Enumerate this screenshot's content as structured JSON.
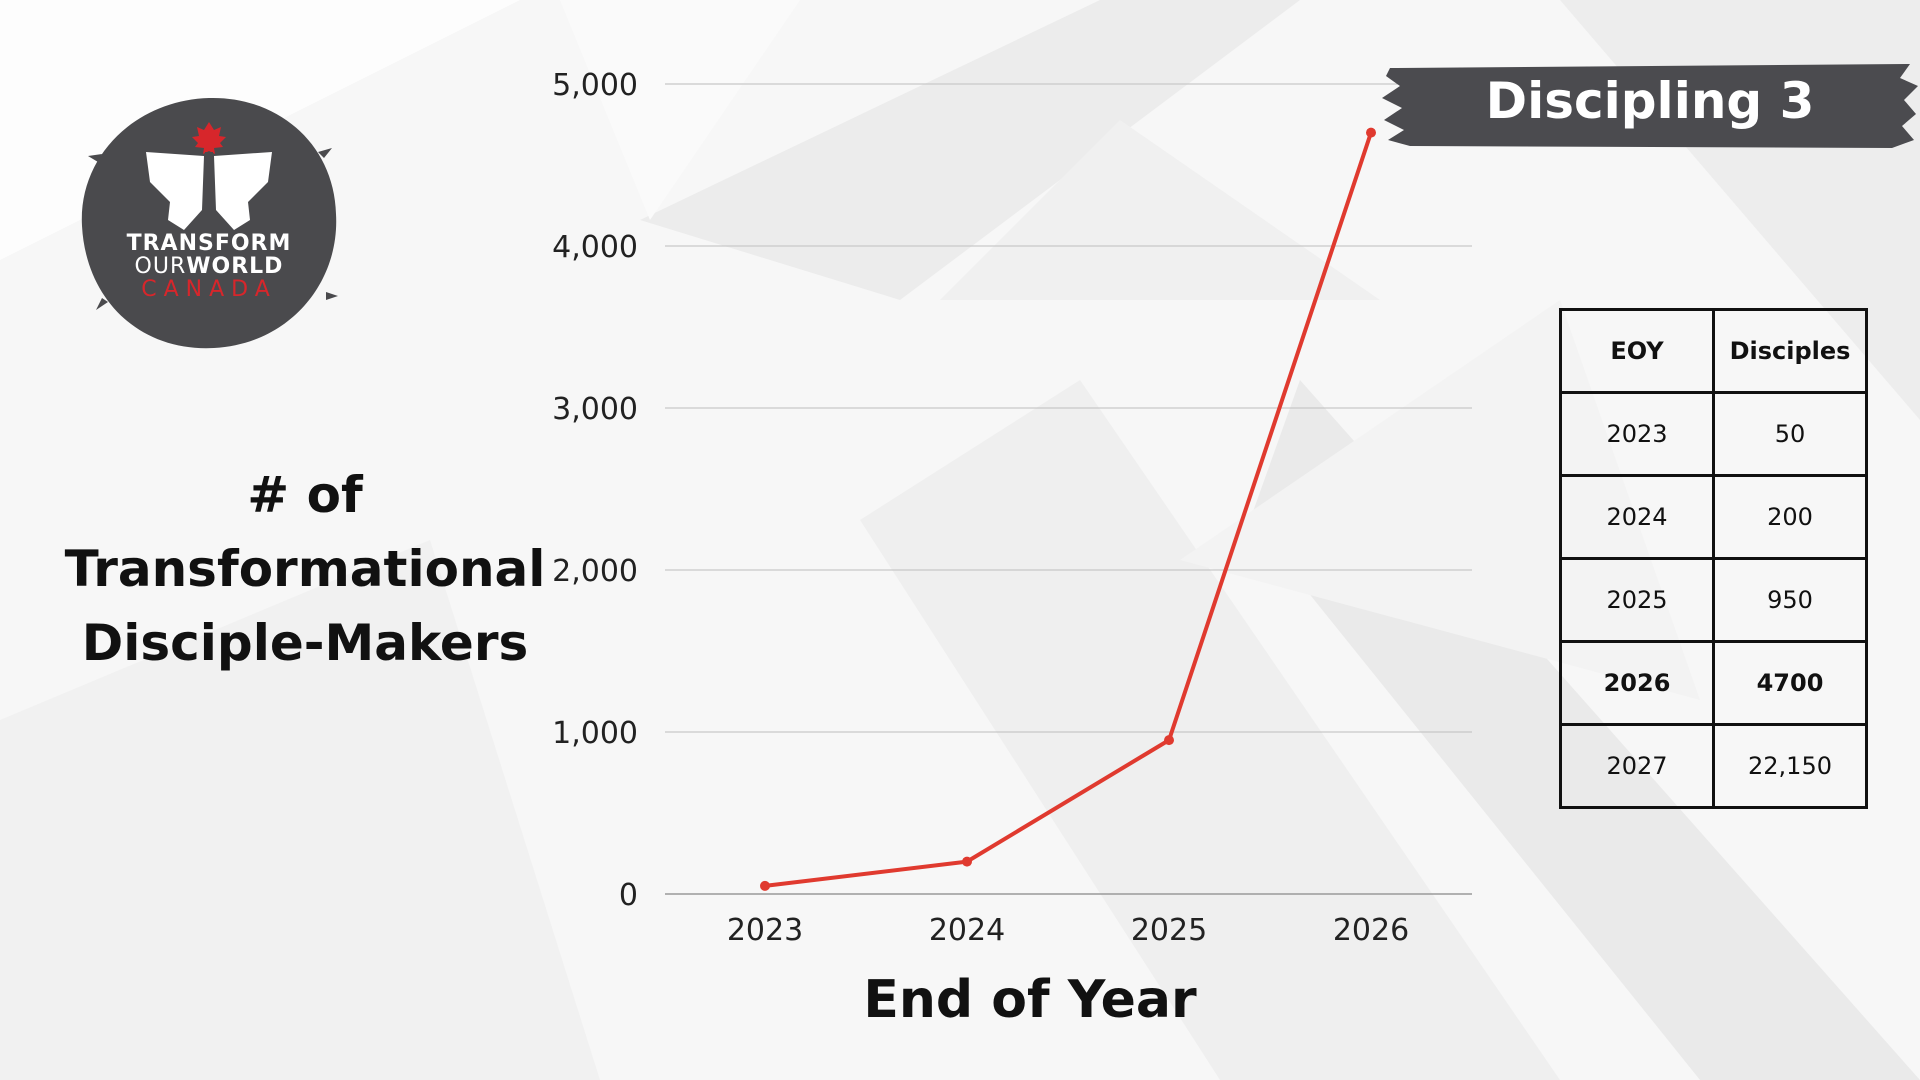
{
  "logo": {
    "line1": "TRANSFORM",
    "line2_thin": "OUR",
    "line2_bold": "WORLD",
    "line3": "CANADA",
    "colors": {
      "disc": "#4a4a4d",
      "leaf": "#d7262b"
    },
    "icons": [
      "butterfly-icon",
      "maple-leaf-icon"
    ]
  },
  "side_title": [
    "# of",
    "Transformational",
    "Disciple-Makers"
  ],
  "badge": {
    "label": "Discipling 3",
    "color": "#4b4b4f"
  },
  "chart_data": {
    "type": "line",
    "categories": [
      "2023",
      "2024",
      "2025",
      "2026"
    ],
    "series": [
      {
        "values": [
          50,
          200,
          950,
          4700
        ],
        "color": "#e03a2f"
      }
    ],
    "title": "",
    "xlabel": "End of Year",
    "ylabel": "",
    "ylim": [
      0,
      5000
    ],
    "yticks": [
      "0",
      "1,000",
      "2,000",
      "3,000",
      "4,000",
      "5,000"
    ],
    "grid": true,
    "legend": "none"
  },
  "table": {
    "headers": [
      "EOY",
      "Disciples"
    ],
    "rows": [
      [
        "2023",
        "50"
      ],
      [
        "2024",
        "200"
      ],
      [
        "2025",
        "950"
      ],
      [
        "2026",
        "4700"
      ],
      [
        "2027",
        "22,150"
      ]
    ],
    "bold_row_index": 3
  }
}
